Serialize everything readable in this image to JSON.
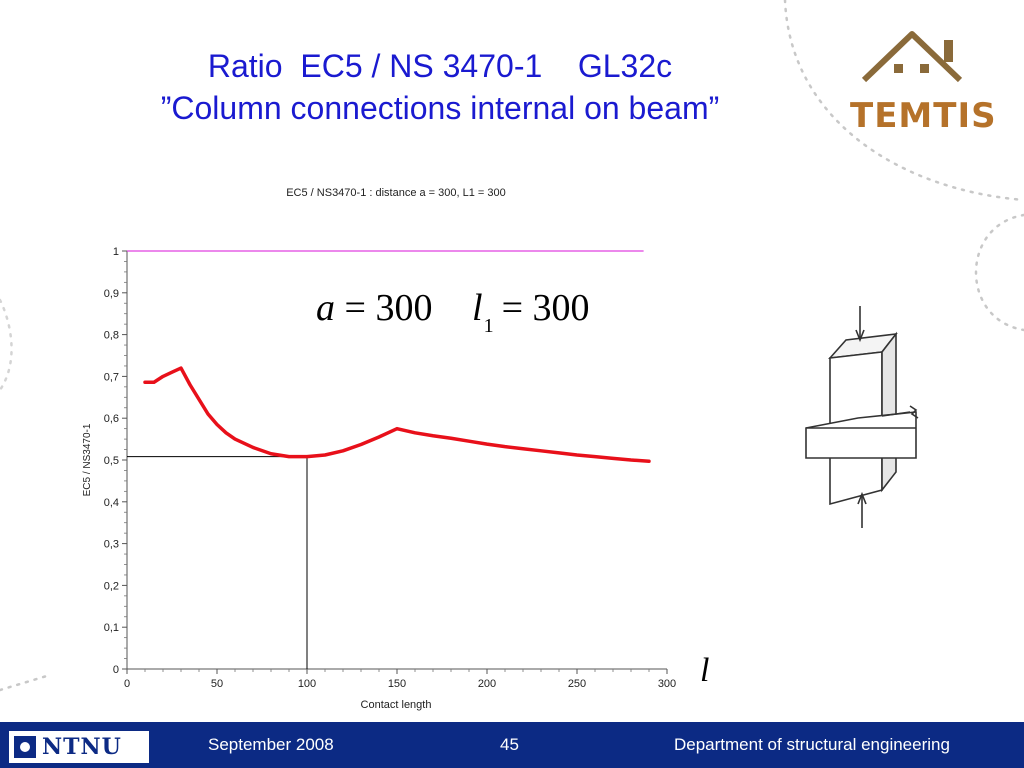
{
  "slide": {
    "title_line1": "Ratio  EC5 / NS 3470-1    GL32c",
    "title_line2": "”Column connections internal on beam”",
    "logo_text": "TEMTIS",
    "formula_a": {
      "var": "a",
      "eq": "=",
      "value": "300"
    },
    "formula_l1": {
      "var": "l",
      "sub": "1",
      "eq": "=",
      "value": "300"
    },
    "axis_symbol": "l"
  },
  "footer": {
    "logo": "NTNU",
    "date": "September 2008",
    "page": "45",
    "department": "Department of structural engineering"
  },
  "chart_data": {
    "type": "line",
    "title": "EC5 / NS3470-1 :  distance a = 300, L1 = 300",
    "xlabel": "Contact length",
    "ylabel": "EC5 / NS3470-1",
    "xlim": [
      0,
      300
    ],
    "ylim": [
      0,
      1
    ],
    "xticks": [
      0,
      50,
      100,
      150,
      200,
      250,
      300
    ],
    "yticks": [
      "0",
      "0,1",
      "0,2",
      "0,3",
      "0,4",
      "0,5",
      "0,6",
      "0,7",
      "0,8",
      "0,9",
      "1"
    ],
    "grid": false,
    "colors": {
      "ratio": "#e8101a",
      "reference": "#e040e0",
      "marker": "#000000"
    },
    "series": [
      {
        "x": [
          10,
          15,
          20,
          25,
          30,
          35,
          40,
          45,
          50,
          55,
          60,
          70,
          80,
          90,
          100,
          110,
          120,
          130,
          140,
          150,
          160,
          170,
          180,
          190,
          200,
          210,
          220,
          230,
          240,
          250,
          260,
          270,
          280,
          290
        ],
        "values": [
          0.686,
          0.686,
          0.7,
          0.71,
          0.72,
          0.68,
          0.645,
          0.61,
          0.585,
          0.565,
          0.55,
          0.53,
          0.515,
          0.508,
          0.508,
          0.512,
          0.522,
          0.537,
          0.555,
          0.575,
          0.565,
          0.558,
          0.552,
          0.545,
          0.538,
          0.532,
          0.527,
          0.522,
          0.517,
          0.512,
          0.508,
          0.504,
          0.5,
          0.497
        ]
      },
      {
        "x": [
          0,
          287
        ],
        "values": [
          1.0,
          1.0
        ]
      }
    ],
    "marker_point": {
      "x": 100,
      "y": 0.508
    }
  }
}
